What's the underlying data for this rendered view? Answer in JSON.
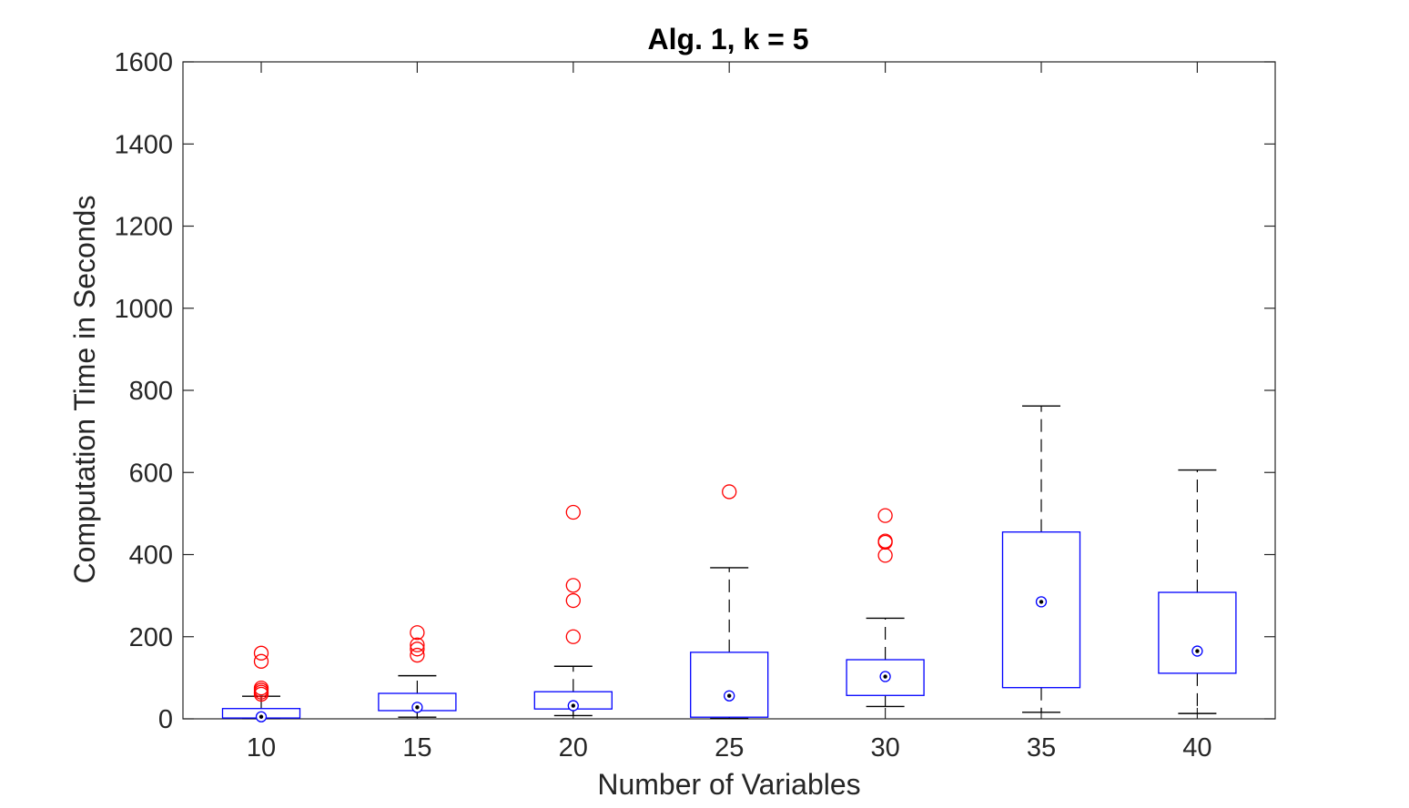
{
  "chart_data": {
    "type": "boxplot",
    "title": "Alg. 1, k = 5",
    "xlabel": "Number of Variables",
    "ylabel": "Computation Time in Seconds",
    "ylim": [
      0,
      1600
    ],
    "yticks": [
      0,
      200,
      400,
      600,
      800,
      1000,
      1200,
      1400,
      1600
    ],
    "yticklabels": [
      "0",
      "200",
      "400",
      "600",
      "800",
      "1000",
      "1200",
      "1400",
      "1600"
    ],
    "categories": [
      "10",
      "15",
      "20",
      "25",
      "30",
      "35",
      "40"
    ],
    "boxes": [
      {
        "label": "10",
        "whisker_low": 1,
        "q1": 2,
        "median": 5,
        "q3": 25,
        "whisker_high": 55,
        "outliers": [
          60,
          65,
          70,
          75,
          140,
          160
        ]
      },
      {
        "label": "15",
        "whisker_low": 4,
        "q1": 20,
        "median": 28,
        "q3": 62,
        "whisker_high": 105,
        "outliers": [
          155,
          170,
          180,
          210
        ]
      },
      {
        "label": "20",
        "whisker_low": 8,
        "q1": 24,
        "median": 32,
        "q3": 66,
        "whisker_high": 128,
        "outliers": [
          200,
          288,
          325,
          503
        ]
      },
      {
        "label": "25",
        "whisker_low": 1,
        "q1": 4,
        "median": 56,
        "q3": 162,
        "whisker_high": 368,
        "outliers": [
          553
        ]
      },
      {
        "label": "30",
        "whisker_low": 30,
        "q1": 57,
        "median": 103,
        "q3": 144,
        "whisker_high": 245,
        "outliers": [
          398,
          430,
          433,
          495
        ]
      },
      {
        "label": "35",
        "whisker_low": 16,
        "q1": 76,
        "median": 285,
        "q3": 455,
        "whisker_high": 762,
        "outliers": []
      },
      {
        "label": "40",
        "whisker_low": 13,
        "q1": 111,
        "median": 165,
        "q3": 308,
        "whisker_high": 606,
        "outliers": []
      }
    ],
    "colors": {
      "box": "#0000ff",
      "whisker": "#000000",
      "outlier": "#ff0000",
      "median_marker": "#000000",
      "axis": "#262626"
    },
    "grid": false
  }
}
